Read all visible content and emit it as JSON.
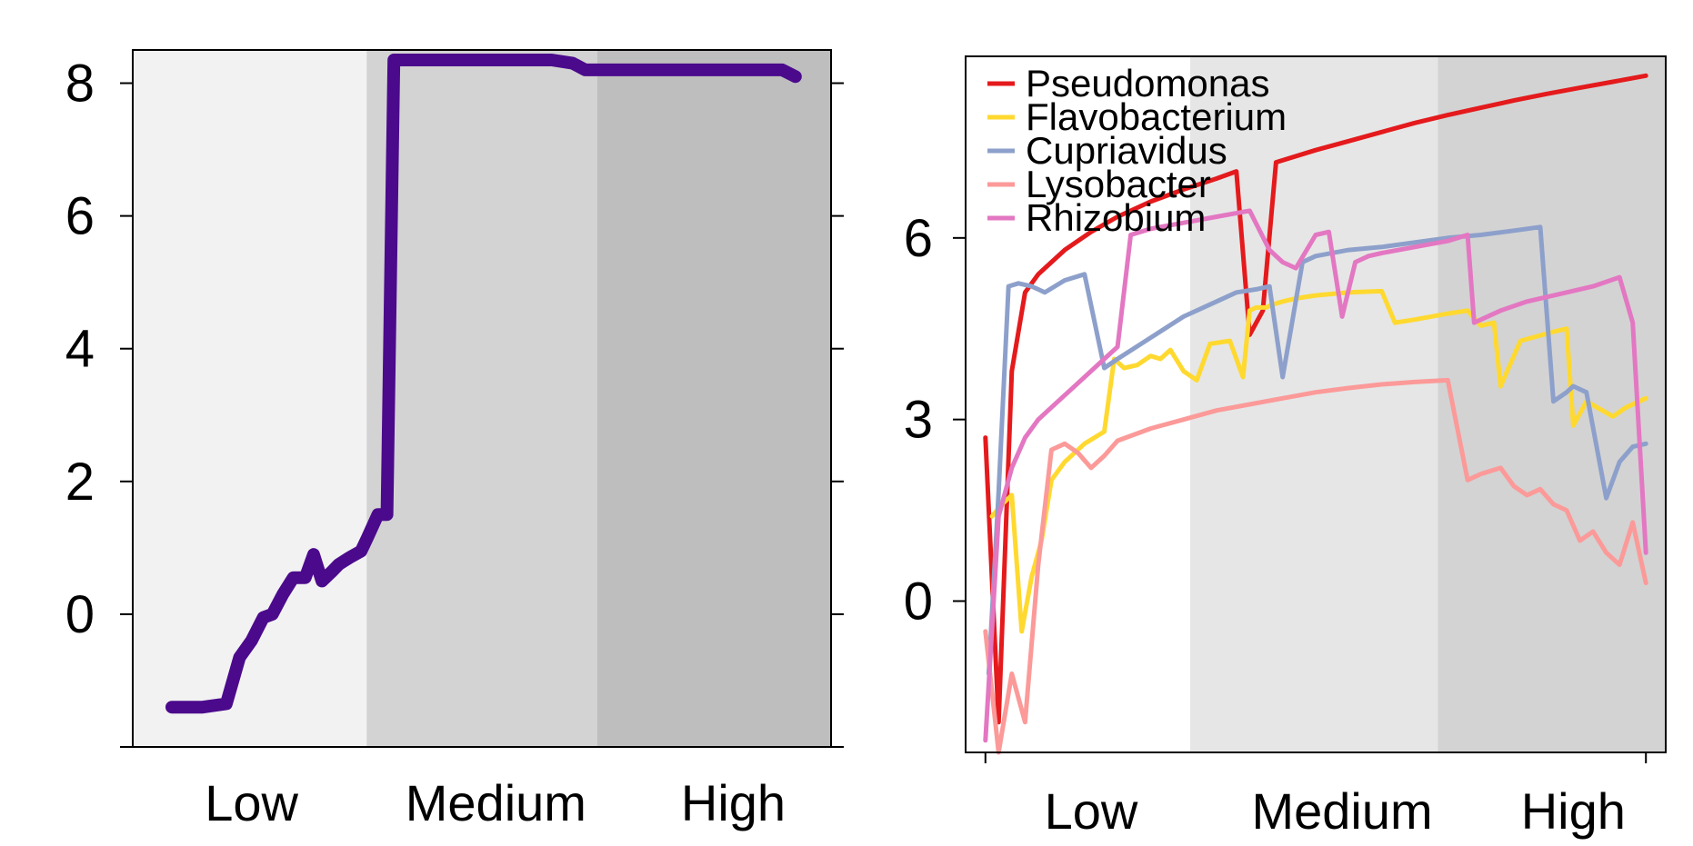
{
  "chart_data": [
    {
      "type": "line",
      "title": "",
      "xlabel": "",
      "ylabel": "",
      "xlim": [
        0,
        100
      ],
      "ylim": [
        -2,
        8.5
      ],
      "yticks": [
        0,
        2,
        4,
        6,
        8
      ],
      "ytick_labels": [
        "0",
        "2",
        "4",
        "6",
        "8"
      ],
      "categories": [
        "Low",
        "Medium",
        "High"
      ],
      "category_centers": [
        17,
        52,
        86
      ],
      "bands": [
        {
          "from": 0,
          "to": 33.5,
          "color": "#f2f2f2"
        },
        {
          "from": 33.5,
          "to": 66.5,
          "color": "#d3d3d3"
        },
        {
          "from": 66.5,
          "to": 100,
          "color": "#bebebe"
        }
      ],
      "grid": false,
      "series": [
        {
          "color": "#4b0a8c",
          "x": [
            5.6,
            10,
            13.4,
            15.3,
            17,
            18.7,
            20,
            21.5,
            23,
            24.7,
            25.9,
            27.1,
            28.6,
            29.5,
            31,
            32.7,
            33.6,
            35.1,
            36.4,
            37.4,
            38.9,
            60,
            63,
            64.8,
            70,
            80,
            90,
            93,
            94.9
          ],
          "y": [
            -1.4,
            -1.4,
            -1.35,
            -0.65,
            -0.4,
            -0.05,
            0,
            0.3,
            0.55,
            0.55,
            0.9,
            0.5,
            0.65,
            0.75,
            0.85,
            0.95,
            1.15,
            1.5,
            1.5,
            8.35,
            8.35,
            8.35,
            8.3,
            8.2,
            8.2,
            8.2,
            8.2,
            8.2,
            8.1
          ]
        }
      ]
    },
    {
      "type": "line",
      "title": "",
      "xlabel": "",
      "ylabel": "",
      "xlim": [
        -3,
        103
      ],
      "ylim": [
        -2.5,
        9
      ],
      "yticks": [
        0,
        3,
        6
      ],
      "ytick_labels": [
        "0",
        "3",
        "6"
      ],
      "categories": [
        "Low",
        "Medium",
        "High"
      ],
      "category_centers": [
        16,
        54,
        89
      ],
      "bands": [
        {
          "from": -3,
          "to": 31,
          "color": "#ffffff"
        },
        {
          "from": 31,
          "to": 68.5,
          "color": "#e6e6e6"
        },
        {
          "from": 68.5,
          "to": 103,
          "color": "#d3d3d3"
        }
      ],
      "legend_position": "top-left",
      "grid": false,
      "series": [
        {
          "name": "Pseudomonas",
          "color": "#e41a1c",
          "x": [
            0,
            2,
            4,
            6,
            8,
            12,
            16,
            20,
            25,
            30,
            35,
            38,
            40,
            42,
            44,
            50,
            55,
            60,
            65,
            70,
            75,
            80,
            85,
            90,
            95,
            100
          ],
          "y": [
            2.7,
            -2.0,
            3.8,
            5.1,
            5.4,
            5.8,
            6.1,
            6.35,
            6.6,
            6.8,
            6.98,
            7.1,
            4.4,
            4.8,
            7.25,
            7.45,
            7.6,
            7.75,
            7.9,
            8.03,
            8.15,
            8.27,
            8.38,
            8.48,
            8.58,
            8.68
          ]
        },
        {
          "name": "Flavobacterium",
          "color": "#ffd92f",
          "x": [
            1,
            2.5,
            4,
            5.5,
            7,
            8.5,
            10,
            12,
            15,
            18,
            19.5,
            21,
            23,
            25,
            26.5,
            28,
            30,
            32,
            34,
            37,
            39,
            40,
            41,
            42.5,
            43.5,
            45,
            47,
            50,
            55,
            60,
            62,
            65,
            70,
            73,
            75,
            77,
            78,
            81,
            86,
            88,
            89,
            91,
            95,
            97,
            100
          ],
          "y": [
            1.4,
            1.6,
            1.75,
            -0.5,
            0.4,
            1.0,
            2.0,
            2.3,
            2.6,
            2.8,
            4.0,
            3.85,
            3.9,
            4.05,
            4.0,
            4.15,
            3.8,
            3.65,
            4.25,
            4.3,
            3.7,
            4.8,
            4.85,
            4.85,
            4.9,
            4.95,
            5.0,
            5.05,
            5.1,
            5.12,
            4.6,
            4.65,
            4.75,
            4.8,
            4.55,
            4.6,
            3.55,
            4.3,
            4.45,
            4.5,
            2.9,
            3.3,
            3.05,
            3.2,
            3.35
          ]
        },
        {
          "name": "Cupriavidus",
          "color": "#8da0cb",
          "x": [
            0.5,
            2,
            3.5,
            5,
            7,
            9,
            12,
            15,
            18,
            20,
            25,
            30,
            35,
            38,
            41,
            43,
            45,
            48,
            50,
            55,
            60,
            70,
            75,
            80,
            84,
            86,
            88,
            89,
            91,
            94,
            96,
            98,
            100
          ],
          "y": [
            -1.2,
            1.8,
            5.2,
            5.25,
            5.2,
            5.1,
            5.3,
            5.4,
            3.85,
            4.0,
            4.35,
            4.7,
            4.95,
            5.1,
            5.15,
            5.2,
            3.7,
            5.6,
            5.7,
            5.8,
            5.85,
            6.0,
            6.05,
            6.12,
            6.18,
            3.3,
            3.45,
            3.55,
            3.45,
            1.7,
            2.3,
            2.55,
            2.6
          ]
        },
        {
          "name": "Lysobacter",
          "color": "#fb9a99",
          "x": [
            0,
            2,
            4,
            6,
            8,
            10,
            12,
            14,
            16,
            18,
            20,
            25,
            30,
            35,
            40,
            45,
            50,
            55,
            60,
            65,
            70,
            73,
            75,
            78,
            80,
            82,
            84,
            86,
            88,
            89,
            90,
            92,
            94,
            96,
            98,
            100
          ],
          "y": [
            -0.5,
            -2.5,
            -1.2,
            -2.0,
            0.6,
            2.5,
            2.6,
            2.45,
            2.2,
            2.4,
            2.65,
            2.85,
            3.0,
            3.15,
            3.25,
            3.35,
            3.45,
            3.52,
            3.58,
            3.62,
            3.65,
            2.0,
            2.1,
            2.2,
            1.9,
            1.75,
            1.85,
            1.6,
            1.5,
            1.25,
            1.0,
            1.15,
            0.8,
            0.6,
            1.3,
            0.3
          ]
        },
        {
          "name": "Rhizobium",
          "color": "#e377c2",
          "x": [
            0,
            2,
            4,
            6,
            8,
            10,
            14,
            18,
            20,
            22,
            25,
            30,
            35,
            40,
            43,
            45,
            47,
            50,
            52,
            54,
            56,
            58,
            60,
            65,
            70,
            73,
            74,
            78,
            82,
            88,
            92,
            96,
            98,
            100
          ],
          "y": [
            -2.3,
            1.4,
            2.2,
            2.7,
            3.0,
            3.2,
            3.6,
            4.0,
            4.2,
            6.05,
            6.15,
            6.25,
            6.35,
            6.45,
            5.8,
            5.6,
            5.5,
            6.05,
            6.1,
            4.7,
            5.6,
            5.7,
            5.75,
            5.85,
            5.95,
            6.05,
            4.6,
            4.8,
            4.95,
            5.1,
            5.2,
            5.35,
            4.6,
            0.8
          ]
        }
      ]
    }
  ]
}
